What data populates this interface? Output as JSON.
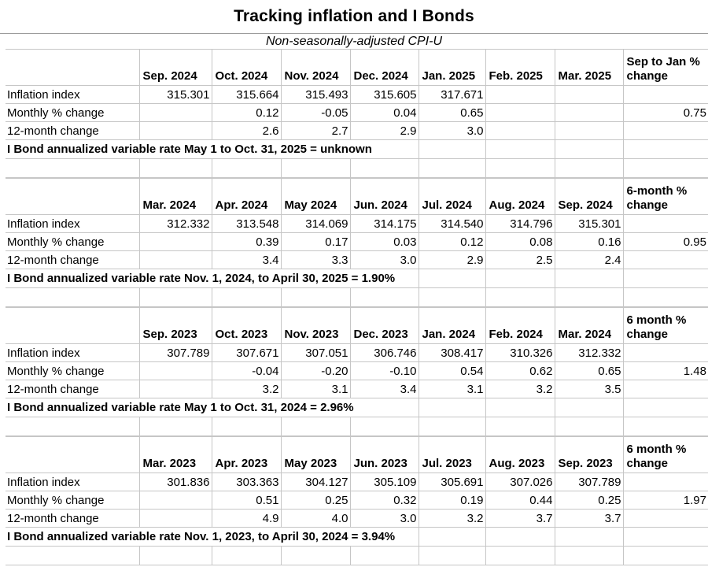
{
  "page": {
    "title": "Tracking inflation and I Bonds",
    "subtitle": "Non-seasonally-adjusted CPI-U"
  },
  "tables": [
    {
      "period_headers": [
        "Sep. 2024",
        "Oct. 2024",
        "Nov. 2024",
        "Dec. 2024",
        "Jan. 2025",
        "Feb. 2025",
        "Mar. 2025"
      ],
      "change_header": "Sep to Jan % change",
      "rows": [
        {
          "label": "Inflation index",
          "values": [
            "315.301",
            "315.664",
            "315.493",
            "315.605",
            "317.671",
            "",
            "",
            ""
          ]
        },
        {
          "label": "Monthly % change",
          "values": [
            "",
            "0.12",
            "-0.05",
            "0.04",
            "0.65",
            "",
            "",
            "0.75"
          ]
        },
        {
          "label": "12-month change",
          "values": [
            "",
            "2.6",
            "2.7",
            "2.9",
            "3.0",
            "",
            "",
            ""
          ]
        }
      ],
      "note": "I Bond annualized variable rate May 1 to Oct. 31, 2025 = unknown"
    },
    {
      "period_headers": [
        "Mar. 2024",
        "Apr. 2024",
        "May 2024",
        "Jun. 2024",
        "Jul. 2024",
        "Aug. 2024",
        "Sep. 2024"
      ],
      "change_header": "6-month % change",
      "rows": [
        {
          "label": "Inflation index",
          "values": [
            "312.332",
            "313.548",
            "314.069",
            "314.175",
            "314.540",
            "314.796",
            "315.301",
            ""
          ]
        },
        {
          "label": "Monthly % change",
          "values": [
            "",
            "0.39",
            "0.17",
            "0.03",
            "0.12",
            "0.08",
            "0.16",
            "0.95"
          ]
        },
        {
          "label": "12-month change",
          "values": [
            "",
            "3.4",
            "3.3",
            "3.0",
            "2.9",
            "2.5",
            "2.4",
            ""
          ]
        }
      ],
      "note": "I Bond annualized variable rate Nov. 1, 2024, to April 30, 2025 = 1.90%"
    },
    {
      "period_headers": [
        "Sep. 2023",
        "Oct. 2023",
        "Nov. 2023",
        "Dec. 2023",
        "Jan. 2024",
        "Feb. 2024",
        "Mar. 2024"
      ],
      "change_header": "6 month % change",
      "rows": [
        {
          "label": "Inflation index",
          "values": [
            "307.789",
            "307.671",
            "307.051",
            "306.746",
            "308.417",
            "310.326",
            "312.332",
            ""
          ]
        },
        {
          "label": "Monthly % change",
          "values": [
            "",
            "-0.04",
            "-0.20",
            "-0.10",
            "0.54",
            "0.62",
            "0.65",
            "1.48"
          ]
        },
        {
          "label": "12-month change",
          "values": [
            "",
            "3.2",
            "3.1",
            "3.4",
            "3.1",
            "3.2",
            "3.5",
            ""
          ]
        }
      ],
      "note": "I Bond annualized variable rate May 1 to Oct. 31, 2024 = 2.96%"
    },
    {
      "period_headers": [
        "Mar. 2023",
        "Apr. 2023",
        "May 2023",
        "Jun. 2023",
        "Jul. 2023",
        "Aug. 2023",
        "Sep. 2023"
      ],
      "change_header": "6 month % change",
      "rows": [
        {
          "label": "Inflation index",
          "values": [
            "301.836",
            "303.363",
            "304.127",
            "305.109",
            "305.691",
            "307.026",
            "307.789",
            ""
          ]
        },
        {
          "label": "Monthly % change",
          "values": [
            "",
            "0.51",
            "0.25",
            "0.32",
            "0.19",
            "0.44",
            "0.25",
            "1.97"
          ]
        },
        {
          "label": "12-month change",
          "values": [
            "",
            "4.9",
            "4.0",
            "3.0",
            "3.2",
            "3.7",
            "3.7",
            ""
          ]
        }
      ],
      "note": "I Bond annualized variable rate Nov. 1, 2023, to April 30, 2024 = 3.94%"
    }
  ]
}
